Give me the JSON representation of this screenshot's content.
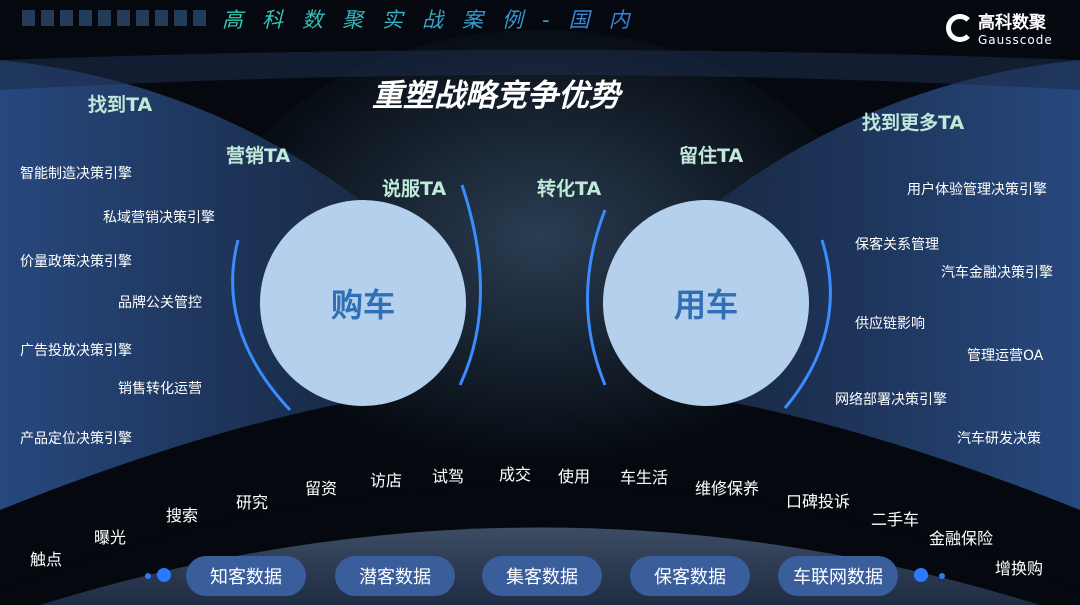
{
  "header": {
    "title": "高科数聚实战案例-国内",
    "logo_cn": "高科数聚",
    "logo_en": "Gausscode"
  },
  "slide_title": "重塑战略竞争优势",
  "stages": {
    "find": "找到TA",
    "market": "营销TA",
    "persuade": "说服TA",
    "convert": "转化TA",
    "retain": "留住TA",
    "find_more": "找到更多TA"
  },
  "circles": {
    "buy": "购车",
    "use": "用车"
  },
  "left_items": [
    "智能制造决策引擎",
    "私域营销决策引擎",
    "价量政策决策引擎",
    "品牌公关管控",
    "广告投放决策引擎",
    "销售转化运营",
    "产品定位决策引擎"
  ],
  "right_items": [
    "用户体验管理决策引擎",
    "保客关系管理",
    "汽车金融决策引擎",
    "供应链影响",
    "管理运营OA",
    "网络部署决策引擎",
    "汽车研发决策"
  ],
  "journey": [
    "触点",
    "曝光",
    "搜索",
    "研究",
    "留资",
    "访店",
    "试驾",
    "成交",
    "使用",
    "车生活",
    "维修保养",
    "口碑投诉",
    "二手车",
    "金融保险",
    "增换购"
  ],
  "data_pills": [
    "知客数据",
    "潜客数据",
    "集客数据",
    "保客数据",
    "车联网数据"
  ],
  "colors": {
    "accent": "#2b79ff",
    "circle": "#b5d0ec",
    "pill": "#3a5d9c",
    "ta": "#bfe9d9"
  }
}
